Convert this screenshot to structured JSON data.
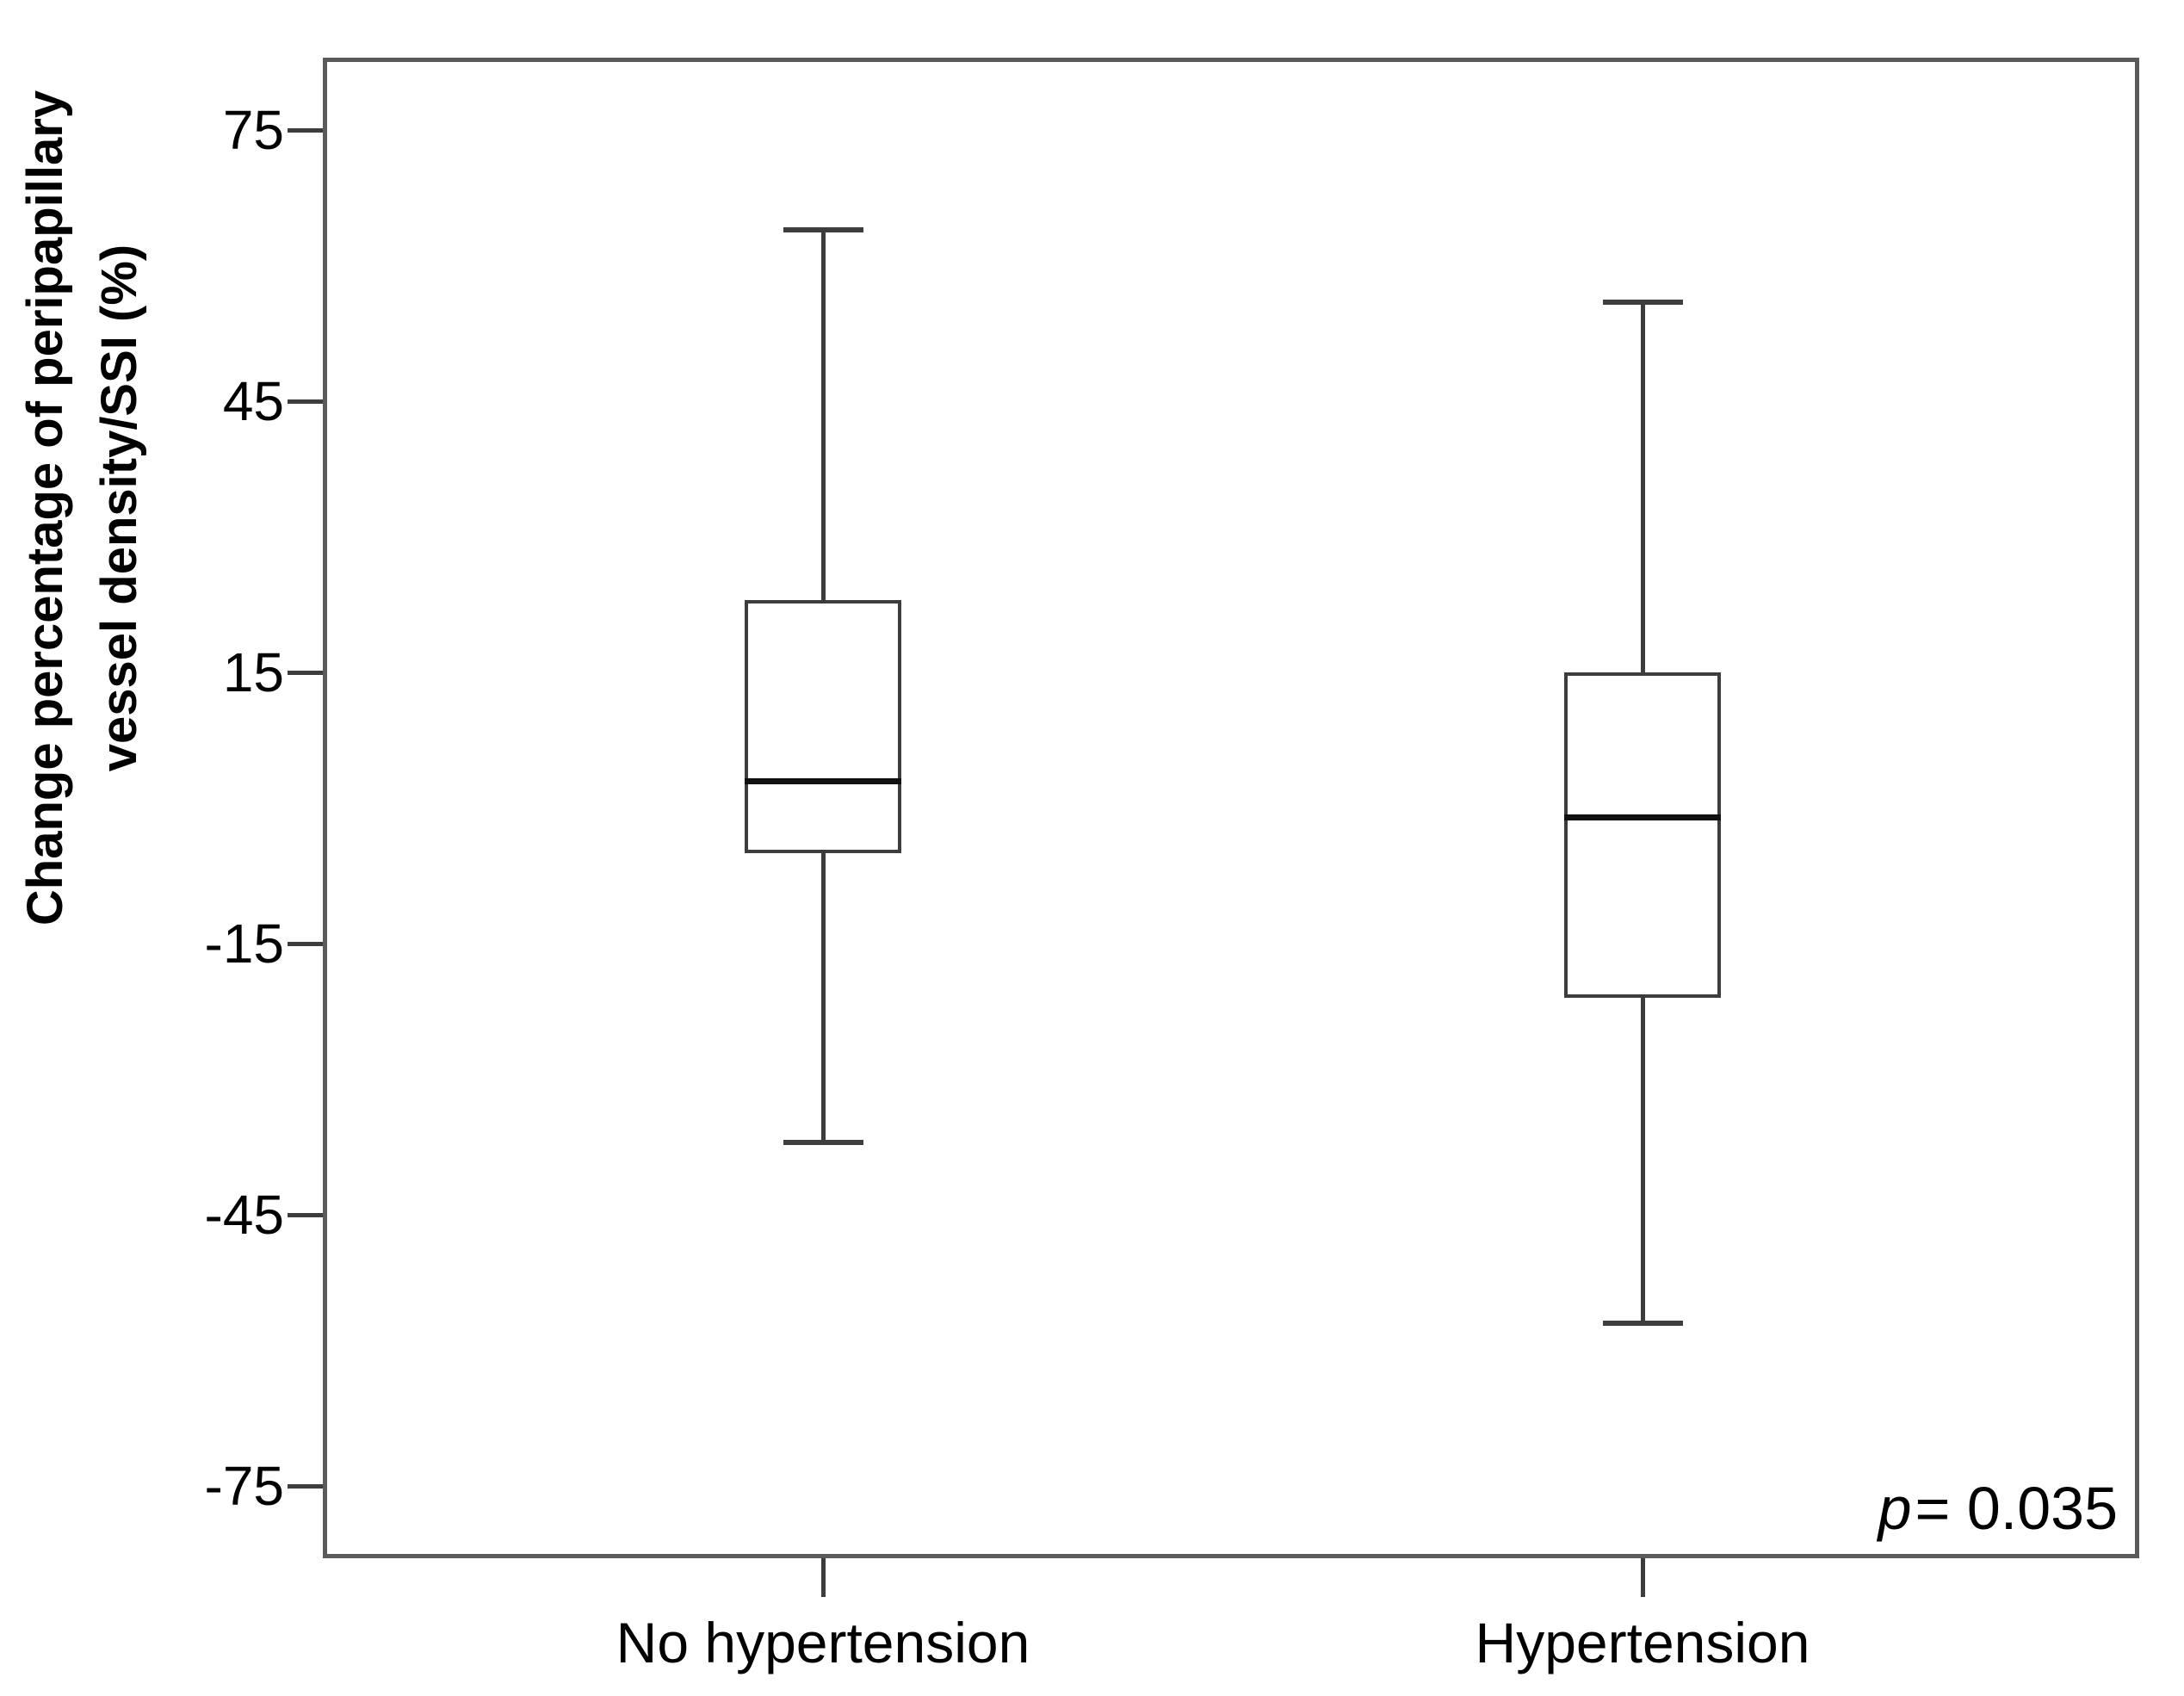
{
  "chart_data": {
    "type": "boxplot",
    "title": "",
    "ylabel_line1": "Change percentage of peripapillary",
    "ylabel_line2": "vessel density/SSI (%)",
    "xlabel": "",
    "categories": [
      "No hypertension",
      "Hypertension"
    ],
    "y_ticks": [
      75,
      45,
      15,
      -15,
      -45,
      -75
    ],
    "ylim": [
      -83,
      83
    ],
    "grid": false,
    "legend": false,
    "annotation": {
      "symbol": "p",
      "text": "= 0.035"
    },
    "series": [
      {
        "name": "No hypertension",
        "whisker_low": -37,
        "q1": -5,
        "median": 3,
        "q3": 23,
        "whisker_high": 64
      },
      {
        "name": "Hypertension",
        "whisker_low": -57,
        "q1": -21,
        "median": -1,
        "q3": 15,
        "whisker_high": 56
      }
    ]
  },
  "style": {
    "line_color": "#3d3d3d",
    "median_color": "#111111",
    "frame_color": "#5a5a5a",
    "text_color": "#000000",
    "background": "#ffffff"
  }
}
